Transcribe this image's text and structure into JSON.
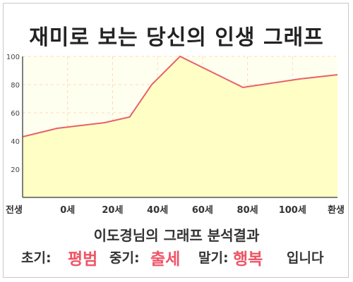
{
  "title": "재미로 보는 당신의 인생 그래프",
  "chart_data": {
    "type": "area",
    "x": [
      0,
      11,
      26,
      34,
      41,
      50,
      70,
      88,
      100
    ],
    "y": [
      43,
      49,
      53,
      57,
      80,
      100,
      78,
      84,
      87
    ],
    "xlim": [
      0,
      100
    ],
    "ylim": [
      0,
      100
    ],
    "yticks": [
      20,
      40,
      60,
      80,
      100
    ],
    "xtick_labels": [
      "전생",
      "0세",
      "20세",
      "40세",
      "60세",
      "80세",
      "100세",
      "환생"
    ],
    "grid": true,
    "colors": {
      "line": "#e8606a",
      "fill": "#ffffc0",
      "plot_bg": "#fffff0",
      "grid": "#ffd8b8"
    }
  },
  "result": {
    "title": "이도경님의 그래프 분석결과",
    "early_label": "초기:",
    "early_value": "평범",
    "middle_label": "중기:",
    "middle_value": "출세",
    "late_label": "말기:",
    "late_value": "행복",
    "ending": "입니다"
  }
}
